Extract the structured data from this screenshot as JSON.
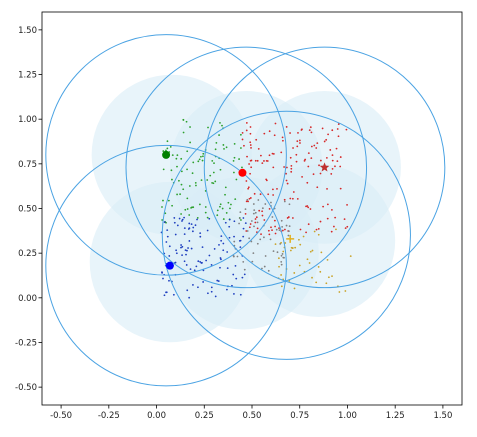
{
  "chart_data": {
    "type": "scatter",
    "title": "",
    "xlabel": "",
    "ylabel": "",
    "xlim": [
      -0.6,
      1.6
    ],
    "ylim": [
      -0.6,
      1.6
    ],
    "aspect": "equal",
    "grid": false,
    "legend": "none",
    "x_ticks": [
      "-0.50",
      "-0.25",
      "0.00",
      "0.25",
      "0.50",
      "0.75",
      "1.00",
      "1.25",
      "1.50"
    ],
    "y_ticks": [
      "-0.50",
      "-0.25",
      "0.00",
      "0.25",
      "0.50",
      "0.75",
      "1.00",
      "1.25",
      "1.50"
    ],
    "regions": [
      {
        "cx": 0.08,
        "cy": 0.8,
        "r": 0.42,
        "color": "#d9edf7"
      },
      {
        "cx": 0.47,
        "cy": 0.73,
        "r": 0.4,
        "color": "#d9edf7"
      },
      {
        "cx": 0.88,
        "cy": 0.73,
        "r": 0.4,
        "color": "#d9edf7"
      },
      {
        "cx": 0.07,
        "cy": 0.2,
        "r": 0.42,
        "color": "#d9edf7"
      },
      {
        "cx": 0.45,
        "cy": 0.25,
        "r": 0.4,
        "color": "#d9edf7"
      },
      {
        "cx": 0.85,
        "cy": 0.32,
        "r": 0.4,
        "color": "#d9edf7"
      }
    ],
    "circles": [
      {
        "cx": 0.05,
        "cy": 0.8,
        "r": 0.63,
        "color": "#4ba3e3"
      },
      {
        "cx": 0.47,
        "cy": 0.73,
        "r": 0.63,
        "color": "#4ba3e3"
      },
      {
        "cx": 0.88,
        "cy": 0.73,
        "r": 0.63,
        "color": "#4ba3e3"
      },
      {
        "cx": 0.05,
        "cy": 0.18,
        "r": 0.63,
        "color": "#4ba3e3"
      },
      {
        "cx": 0.68,
        "cy": 0.35,
        "r": 0.65,
        "color": "#4ba3e3"
      }
    ],
    "clusters": [
      {
        "color": "#2ca02c",
        "n": 110,
        "xmin": 0.02,
        "xmax": 0.45,
        "ymin": 0.42,
        "ymax": 1.0,
        "seed": 11
      },
      {
        "color": "#d62728",
        "n": 170,
        "xmin": 0.45,
        "xmax": 1.0,
        "ymin": 0.35,
        "ymax": 0.98,
        "seed": 23
      },
      {
        "color": "#1f3fbf",
        "n": 120,
        "xmin": 0.02,
        "xmax": 0.48,
        "ymin": 0.0,
        "ymax": 0.45,
        "seed": 37
      },
      {
        "color": "#808080",
        "n": 60,
        "xmin": 0.4,
        "xmax": 0.7,
        "ymin": 0.15,
        "ymax": 0.55,
        "seed": 41
      },
      {
        "color": "#c9a227",
        "n": 45,
        "xmin": 0.62,
        "xmax": 1.02,
        "ymin": 0.02,
        "ymax": 0.4,
        "seed": 53
      }
    ],
    "centers": [
      {
        "x": 0.05,
        "y": 0.8,
        "color": "#008000",
        "marker": "circle"
      },
      {
        "x": 0.45,
        "y": 0.7,
        "color": "#ff0000",
        "marker": "circle"
      },
      {
        "x": 0.07,
        "y": 0.18,
        "color": "#0000ff",
        "marker": "circle"
      },
      {
        "x": 0.88,
        "y": 0.73,
        "color": "#c03030",
        "marker": "star"
      },
      {
        "x": 0.7,
        "y": 0.33,
        "color": "#e0b020",
        "marker": "plus"
      }
    ]
  }
}
